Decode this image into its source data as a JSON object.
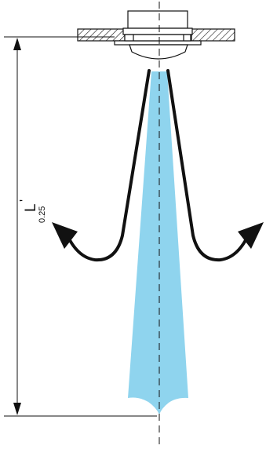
{
  "dimension": {
    "main": "L",
    "prime": "'",
    "subscript": "0.25"
  },
  "colors": {
    "jet": "#8fd4ee",
    "outline": "#111111",
    "background": "#ffffff"
  }
}
